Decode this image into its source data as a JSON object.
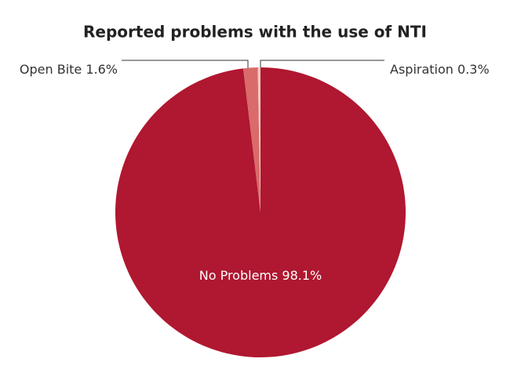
{
  "chart_data": {
    "type": "pie",
    "title": "Reported problems with the use of NTI",
    "categories": [
      "No Problems",
      "Open Bite",
      "Aspiration"
    ],
    "values": [
      98.1,
      1.6,
      0.3
    ],
    "value_labels": [
      "98.1%",
      "1.6%",
      "0.3%"
    ],
    "colors": [
      "#b01730",
      "#d96b6a",
      "#f4c9c3"
    ]
  }
}
